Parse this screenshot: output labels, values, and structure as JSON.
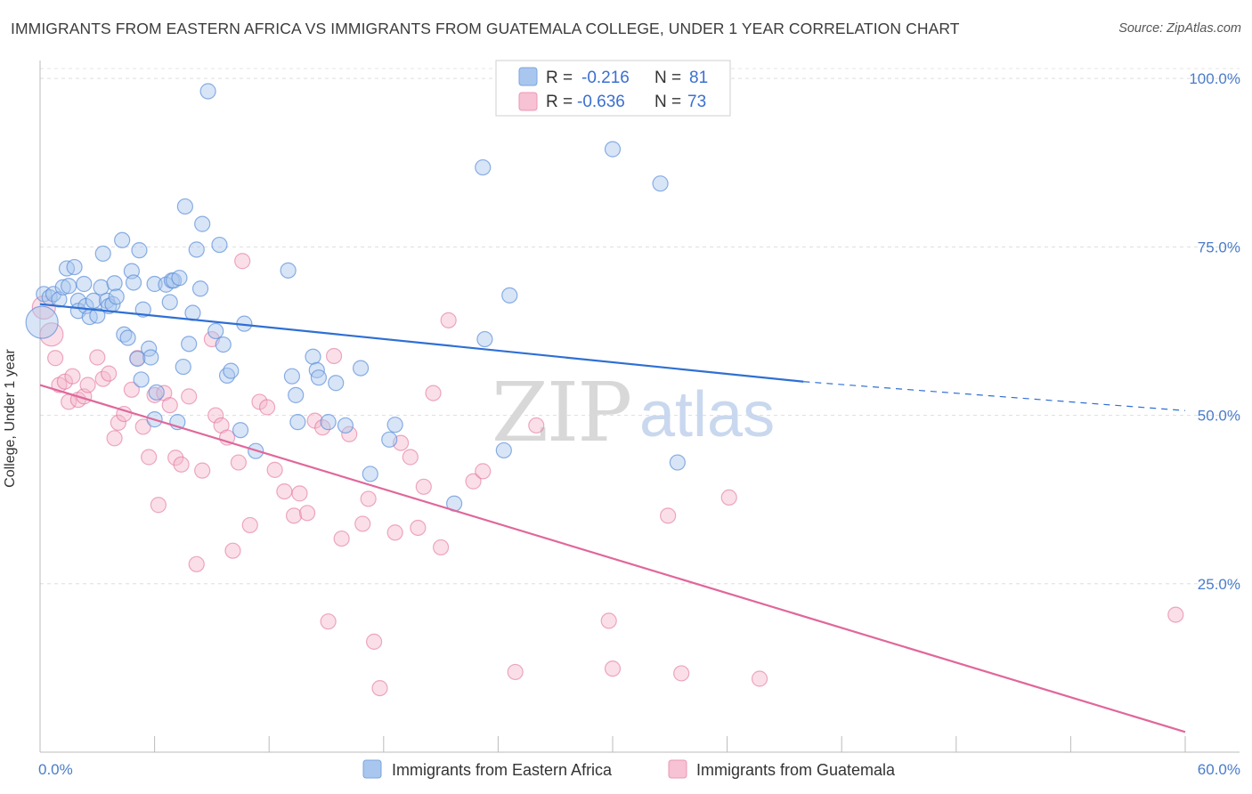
{
  "title": "IMMIGRANTS FROM EASTERN AFRICA VS IMMIGRANTS FROM GUATEMALA COLLEGE, UNDER 1 YEAR CORRELATION CHART",
  "source": "Source: ZipAtlas.com",
  "watermark": {
    "zip": "ZIP",
    "atlas": "atlas"
  },
  "colors": {
    "blue": "#5b8fd9",
    "blue_fill": "#a9c6ee",
    "pink": "#e06894",
    "pink_fill": "#f4b9cc",
    "blue_line": "#2f6fd4",
    "pink_line": "#e0679a"
  },
  "legend": {
    "rows": [
      {
        "r_label": "R =",
        "r_value": "-0.216",
        "n_label": "N =",
        "n_value": "81"
      },
      {
        "r_label": "R =",
        "r_value": "-0.636",
        "n_label": "N =",
        "n_value": "73"
      }
    ]
  },
  "bottom_legend": [
    "Immigrants from Eastern Africa",
    "Immigrants from Guatemala"
  ],
  "chart_data": {
    "type": "scatter",
    "xlabel": "",
    "ylabel": "College, Under 1 year",
    "xlim": [
      0,
      60
    ],
    "ylim": [
      0,
      102
    ],
    "x_tick_labels": [
      "0.0%",
      "60.0%"
    ],
    "y_ticks": [
      25,
      50,
      75,
      100
    ],
    "y_tick_labels": [
      "25.0%",
      "50.0%",
      "75.0%",
      "100.0%"
    ],
    "grid": true,
    "legend_placement": "top-center",
    "series": [
      {
        "name": "Immigrants from Eastern Africa",
        "trend": {
          "x0": 0,
          "y0": 66.5,
          "x1": 40,
          "y1": 55.0,
          "dash_to_x": 60,
          "dash_to_y": 50.7
        },
        "points": [
          [
            0.2,
            68
          ],
          [
            0.5,
            67.5
          ],
          [
            0.7,
            68
          ],
          [
            1.0,
            67.2
          ],
          [
            1.2,
            69
          ],
          [
            1.4,
            71.8
          ],
          [
            1.5,
            69.2
          ],
          [
            1.8,
            72
          ],
          [
            2.0,
            67
          ],
          [
            2.0,
            65.5
          ],
          [
            2.3,
            69.5
          ],
          [
            2.4,
            66.2
          ],
          [
            2.6,
            64.6
          ],
          [
            2.8,
            67
          ],
          [
            3.0,
            64.8
          ],
          [
            3.2,
            69
          ],
          [
            3.3,
            74
          ],
          [
            3.5,
            67
          ],
          [
            3.6,
            66.2
          ],
          [
            3.8,
            66.5
          ],
          [
            3.9,
            69.6
          ],
          [
            4.0,
            67.6
          ],
          [
            4.3,
            76
          ],
          [
            4.4,
            62
          ],
          [
            4.6,
            61.5
          ],
          [
            4.8,
            71.4
          ],
          [
            4.9,
            69.7
          ],
          [
            5.1,
            58.4
          ],
          [
            5.2,
            74.5
          ],
          [
            5.3,
            55.3
          ],
          [
            5.4,
            65.7
          ],
          [
            5.7,
            59.9
          ],
          [
            5.8,
            58.6
          ],
          [
            6.0,
            69.5
          ],
          [
            6.1,
            53.4
          ],
          [
            6.6,
            69.4
          ],
          [
            6.8,
            66.8
          ],
          [
            6.9,
            70
          ],
          [
            7.0,
            70
          ],
          [
            7.2,
            49.0
          ],
          [
            7.3,
            70.4
          ],
          [
            7.5,
            57.2
          ],
          [
            7.6,
            81
          ],
          [
            7.8,
            60.6
          ],
          [
            8.0,
            65.2
          ],
          [
            8.2,
            74.6
          ],
          [
            8.4,
            68.8
          ],
          [
            8.5,
            78.4
          ],
          [
            8.8,
            98.1
          ],
          [
            9.2,
            62.5
          ],
          [
            9.4,
            75.3
          ],
          [
            9.6,
            60.5
          ],
          [
            9.8,
            55.9
          ],
          [
            10.0,
            56.6
          ],
          [
            10.5,
            47.8
          ],
          [
            10.7,
            63.6
          ],
          [
            11.3,
            44.7
          ],
          [
            13.0,
            71.5
          ],
          [
            13.2,
            55.8
          ],
          [
            13.4,
            53
          ],
          [
            13.5,
            49
          ],
          [
            14.3,
            58.7
          ],
          [
            14.5,
            56.7
          ],
          [
            14.6,
            55.6
          ],
          [
            15.1,
            49
          ],
          [
            15.5,
            54.8
          ],
          [
            16.0,
            48.5
          ],
          [
            16.8,
            57
          ],
          [
            17.3,
            41.3
          ],
          [
            18.3,
            46.4
          ],
          [
            18.6,
            48.6
          ],
          [
            21.7,
            36.9
          ],
          [
            23.2,
            86.8
          ],
          [
            23.3,
            61.3
          ],
          [
            24.3,
            44.8
          ],
          [
            24.6,
            67.8
          ],
          [
            30.0,
            89.5
          ],
          [
            32.5,
            84.4
          ],
          [
            33.4,
            43
          ],
          [
            0.1,
            63.8
          ],
          [
            6.0,
            49.4
          ]
        ]
      },
      {
        "name": "Immigrants from Guatemala",
        "trend": {
          "x0": 0,
          "y0": 54.5,
          "x1": 60,
          "y1": 3.0
        },
        "points": [
          [
            0.2,
            66
          ],
          [
            0.6,
            62
          ],
          [
            0.8,
            58.5
          ],
          [
            1.0,
            54.5
          ],
          [
            1.3,
            55
          ],
          [
            1.5,
            52
          ],
          [
            1.7,
            55.8
          ],
          [
            2.0,
            52.3
          ],
          [
            2.3,
            52.8
          ],
          [
            2.5,
            54.5
          ],
          [
            3.0,
            58.6
          ],
          [
            3.3,
            55.4
          ],
          [
            3.6,
            56.2
          ],
          [
            3.9,
            46.6
          ],
          [
            4.1,
            48.9
          ],
          [
            4.4,
            50.2
          ],
          [
            4.8,
            53.8
          ],
          [
            5.1,
            58.5
          ],
          [
            5.4,
            48.3
          ],
          [
            5.7,
            43.8
          ],
          [
            6.0,
            53.0
          ],
          [
            6.2,
            36.7
          ],
          [
            6.5,
            53.3
          ],
          [
            6.8,
            51.5
          ],
          [
            7.1,
            43.7
          ],
          [
            7.4,
            42.7
          ],
          [
            7.8,
            52.8
          ],
          [
            8.2,
            27.9
          ],
          [
            8.5,
            41.8
          ],
          [
            9.0,
            61.3
          ],
          [
            9.2,
            50.0
          ],
          [
            9.5,
            48.5
          ],
          [
            9.8,
            46.7
          ],
          [
            10.1,
            29.9
          ],
          [
            10.4,
            43.0
          ],
          [
            10.6,
            72.9
          ],
          [
            11.0,
            33.7
          ],
          [
            11.5,
            52.0
          ],
          [
            11.9,
            51.2
          ],
          [
            12.3,
            41.9
          ],
          [
            12.8,
            38.7
          ],
          [
            13.3,
            35.1
          ],
          [
            13.6,
            38.4
          ],
          [
            14.0,
            35.5
          ],
          [
            14.4,
            49.2
          ],
          [
            14.8,
            48.2
          ],
          [
            15.1,
            19.4
          ],
          [
            15.4,
            58.8
          ],
          [
            15.8,
            31.7
          ],
          [
            16.2,
            47.2
          ],
          [
            16.9,
            33.9
          ],
          [
            17.2,
            37.6
          ],
          [
            17.5,
            16.4
          ],
          [
            17.8,
            9.5
          ],
          [
            18.6,
            32.6
          ],
          [
            18.9,
            45.9
          ],
          [
            19.4,
            43.8
          ],
          [
            19.8,
            33.3
          ],
          [
            20.1,
            39.4
          ],
          [
            20.6,
            53.3
          ],
          [
            21.0,
            30.4
          ],
          [
            21.4,
            64.1
          ],
          [
            22.7,
            40.2
          ],
          [
            23.2,
            41.7
          ],
          [
            24.9,
            11.9
          ],
          [
            26.0,
            48.5
          ],
          [
            29.8,
            19.5
          ],
          [
            30.0,
            12.4
          ],
          [
            32.9,
            35.1
          ],
          [
            33.6,
            11.7
          ],
          [
            36.1,
            37.8
          ],
          [
            37.7,
            10.9
          ],
          [
            59.5,
            20.4
          ]
        ]
      }
    ]
  }
}
